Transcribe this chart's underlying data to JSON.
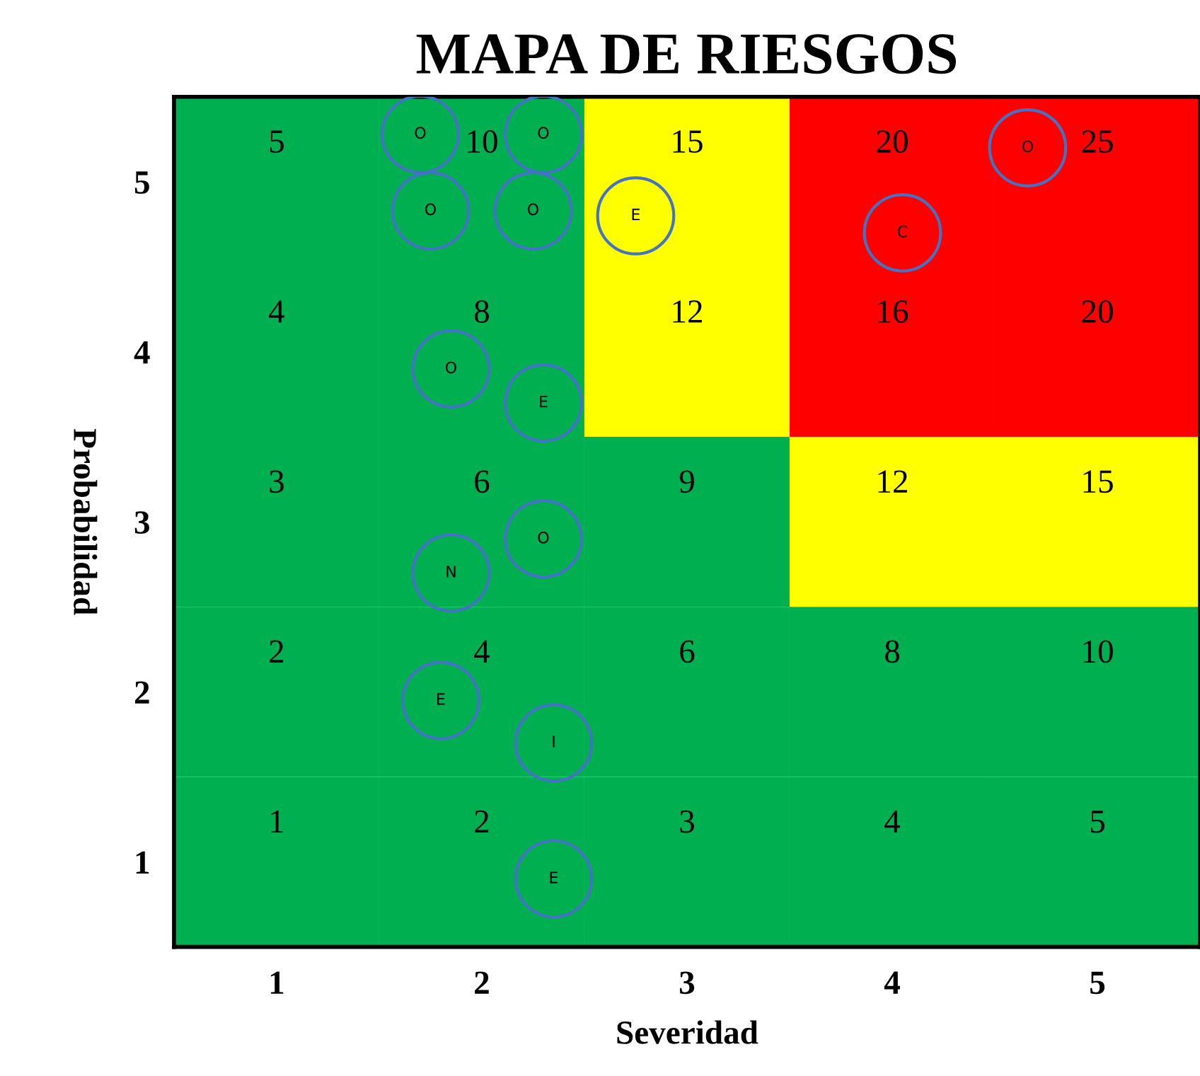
{
  "chart_data": {
    "type": "heatmap",
    "title": "MAPA DE RIESGOS",
    "xlabel": "Severidad",
    "ylabel": "Probabilidad",
    "categories": [
      "1",
      "2",
      "3",
      "4",
      "5"
    ],
    "y_categories": [
      "5",
      "4",
      "3",
      "2",
      "1"
    ],
    "cells": [
      [
        5,
        10,
        15,
        20,
        25
      ],
      [
        4,
        8,
        12,
        16,
        20
      ],
      [
        3,
        6,
        9,
        12,
        15
      ],
      [
        2,
        4,
        6,
        8,
        10
      ],
      [
        1,
        2,
        3,
        4,
        5
      ]
    ],
    "colors": [
      [
        "#00b050",
        "#00b050",
        "#ffff00",
        "#ff0000",
        "#ff0000"
      ],
      [
        "#00b050",
        "#00b050",
        "#ffff00",
        "#ff0000",
        "#ff0000"
      ],
      [
        "#00b050",
        "#00b050",
        "#00b050",
        "#ffff00",
        "#ffff00"
      ],
      [
        "#00b050",
        "#00b050",
        "#00b050",
        "#00b050",
        "#00b050"
      ],
      [
        "#00b050",
        "#00b050",
        "#00b050",
        "#00b050",
        "#00b050"
      ]
    ],
    "data_labels": true,
    "annotations": [
      "O",
      "O",
      "O",
      "O",
      "E",
      "C",
      "O",
      "O",
      "E",
      "N",
      "O",
      "E",
      "I",
      "E"
    ]
  }
}
